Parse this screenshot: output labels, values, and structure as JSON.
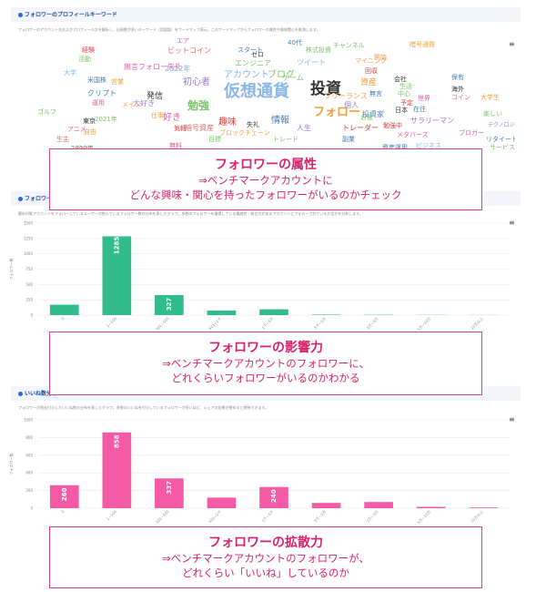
{
  "colors": {
    "accent": "#d6226b",
    "green_bar": "#33bc8b",
    "pink_bar": "#f45aa5",
    "header_bg": "#f3f5fa",
    "header_text": "#1d4e99"
  },
  "panel1": {
    "title": "フォロワーのプロフィールキーワード",
    "desc": "フォロワーのアカウント名およびプロフィール文を解析し、出現数が多いキーワード（用語語）をワードマップ表示。このワードマップからフォロワーの属性や興味関心を推測します。",
    "menu_icon": "hamburger-icon",
    "words": [
      {
        "t": "仮想通貨",
        "c": "#8ab6e6"
      },
      {
        "t": "投資",
        "c": "#333333"
      },
      {
        "t": "フォロー",
        "c": "#f0a040"
      },
      {
        "t": "勉強",
        "c": "#7cc26a"
      },
      {
        "t": "初心者",
        "c": "#9a7ad6"
      },
      {
        "t": "好き",
        "c": "#e060a0"
      },
      {
        "t": "アカウント",
        "c": "#8ab6e6"
      },
      {
        "t": "ブログ",
        "c": "#7cc26a"
      },
      {
        "t": "情報",
        "c": "#4a7ab0"
      },
      {
        "t": "趣味",
        "c": "#d64040"
      },
      {
        "t": "資産",
        "c": "#f0a040"
      },
      {
        "t": "発信",
        "c": "#333333"
      },
      {
        "t": "エンジニア",
        "c": "#7cc26a"
      },
      {
        "t": "暗号資産",
        "c": "#e06a6a"
      },
      {
        "t": "人生",
        "c": "#9a7ad6"
      },
      {
        "t": "トレーダー",
        "c": "#d64040"
      },
      {
        "t": "投資家",
        "c": "#4a7ab0"
      },
      {
        "t": "無言フォロー失礼",
        "c": "#e060a0"
      },
      {
        "t": "ツイート",
        "c": "#8ab6e6"
      },
      {
        "t": "フリーランス",
        "c": "#f0a040"
      },
      {
        "t": "クリプト",
        "c": "#4a7ab0"
      },
      {
        "t": "ゲーム",
        "c": "#7cc26a"
      },
      {
        "t": "2022年",
        "c": "#8ab6e6"
      },
      {
        "t": "ビットコイン",
        "c": "#e06a6a"
      },
      {
        "t": "株式投資",
        "c": "#7cc26a"
      },
      {
        "t": "大好き",
        "c": "#9a7ad6"
      },
      {
        "t": "サラリーマン",
        "c": "#9a7ad6"
      },
      {
        "t": "メタバース",
        "c": "#e060a0"
      },
      {
        "t": "副業",
        "c": "#4a7ab0"
      },
      {
        "t": "勉強中",
        "c": "#d64040"
      },
      {
        "t": "日本",
        "c": "#333333"
      },
      {
        "t": "失礼",
        "c": "#333333"
      },
      {
        "t": "東京",
        "c": "#333333"
      },
      {
        "t": "仕事",
        "c": "#f0a040"
      },
      {
        "t": "米国株",
        "c": "#4a7ab0"
      },
      {
        "t": "ブロックチェーン",
        "c": "#f0a040"
      },
      {
        "t": "お金",
        "c": "#7cc26a"
      },
      {
        "t": "運用",
        "c": "#e060a0"
      },
      {
        "t": "スタート",
        "c": "#4a7ab0"
      },
      {
        "t": "チャンネル",
        "c": "#7cc26a"
      },
      {
        "t": "マイニング",
        "c": "#f0a040"
      },
      {
        "t": "暗号通貨",
        "c": "#4a7ab0"
      },
      {
        "t": "気軽",
        "c": "#d64040"
      },
      {
        "t": "メイン",
        "c": "#f0a040"
      },
      {
        "t": "活動",
        "c": "#7cc26a"
      },
      {
        "t": "経験",
        "c": "#d64040"
      },
      {
        "t": "大学",
        "c": "#8ab6e6"
      },
      {
        "t": "2021年",
        "c": "#7cc26a"
      },
      {
        "t": "アニメ",
        "c": "#e060a0"
      },
      {
        "t": "ゴルフ",
        "c": "#7cc26a"
      },
      {
        "t": "生主",
        "c": "#e06a6a"
      },
      {
        "t": "自由",
        "c": "#f0a040"
      },
      {
        "t": "2020年",
        "c": "#4a7ab0"
      },
      {
        "t": "世界",
        "c": "#e060a0"
      },
      {
        "t": "中心",
        "c": "#7cc26a"
      },
      {
        "t": "会社",
        "c": "#333333"
      },
      {
        "t": "保有",
        "c": "#4a7ab0"
      },
      {
        "t": "海外",
        "c": "#333333"
      },
      {
        "t": "ビジネス",
        "c": "#8ab6e6"
      },
      {
        "t": "ブロガー",
        "c": "#e060a0"
      },
      {
        "t": "資産運用",
        "c": "#4a7ab0"
      },
      {
        "t": "日本株",
        "c": "#4a7ab0"
      },
      {
        "t": "目標",
        "c": "#7cc26a"
      },
      {
        "t": "トレード",
        "c": "#7cc26a"
      },
      {
        "t": "在住",
        "c": "#4a7ab0"
      },
      {
        "t": "予定",
        "c": "#d64040"
      },
      {
        "t": "生活",
        "c": "#7cc26a"
      },
      {
        "t": "開始",
        "c": "#f0a040"
      },
      {
        "t": "無言",
        "c": "#4a7ab0"
      },
      {
        "t": "回収",
        "c": "#d64040"
      },
      {
        "t": "個人",
        "c": "#9a7ad6"
      },
      {
        "t": "無料",
        "c": "#e060a0"
      },
      {
        "t": "コイン",
        "c": "#e060a0"
      },
      {
        "t": "大学生",
        "c": "#f0a040"
      },
      {
        "t": "楽しい",
        "c": "#7cc26a"
      },
      {
        "t": "サービス",
        "c": "#7cc26a"
      },
      {
        "t": "リタイート",
        "c": "#4a7ab0"
      },
      {
        "t": "テクノロジー",
        "c": "#9a7ad6"
      },
      {
        "t": "エア",
        "c": "#e060a0"
      },
      {
        "t": "ゼロ",
        "c": "#333333"
      },
      {
        "t": "40代",
        "c": "#4a7ab0"
      },
      {
        "t": "社会人",
        "c": "#f0a040"
      },
      {
        "t": "暗号通貨",
        "c": "#f0a040"
      },
      {
        "t": "営業",
        "c": "#f0a040"
      },
      {
        "t": "本業",
        "c": "#333333"
      }
    ]
  },
  "panel2": {
    "title": "フォロワーの影響力分布",
    "desc": "解析対象アカウントをフォローしているユーザーが抱えているフォロワー数の分布を表したグラフ。多数のフォロワーを獲得している権威性・発言力があるアカウントにフォローされているか否かを分析します。",
    "menu_icon": "hamburger-icon"
  },
  "panel3": {
    "title": "いいね数分布",
    "desc": "フォロワーが過去付与したいいね数の分布を表したグラフ。多数のいいねを付与しているフォロワーが多いほど、シェアの効果が望めると期待できます。",
    "menu_icon": "hamburger-icon"
  },
  "chart_data": [
    {
      "type": "bar",
      "ylabel": "フォロワー数",
      "ylim": [
        0,
        1500
      ],
      "yticks": [
        0,
        250,
        500,
        750,
        1000,
        1250,
        1500
      ],
      "categories": [
        "0",
        "1~100",
        "101~500",
        "501~1千",
        "1千~5千",
        "5千~1万",
        "1万~5万",
        "5万~10万",
        "10万以上"
      ],
      "values": [
        170,
        1285,
        327,
        75,
        95,
        8,
        5,
        3,
        2
      ],
      "labels": [
        null,
        "1285",
        "327",
        null,
        null,
        null,
        null,
        null,
        null
      ],
      "color": "#33bc8b"
    },
    {
      "type": "bar",
      "ylabel": "フォロワー数",
      "ylim": [
        0,
        1000
      ],
      "yticks": [
        0,
        200,
        400,
        600,
        800,
        1000
      ],
      "categories": [
        "0",
        "1~100",
        "101~500",
        "501~1千",
        "1千~5千",
        "5千~1万",
        "1万~5万",
        "5万~10万",
        "10万以上"
      ],
      "values": [
        260,
        858,
        337,
        120,
        240,
        60,
        70,
        15,
        8
      ],
      "labels": [
        "260",
        "858",
        "337",
        null,
        "240",
        null,
        null,
        null,
        null
      ],
      "color": "#f45aa5"
    }
  ],
  "callouts": [
    {
      "title": "フォロワーの属性",
      "line1": "⇒ベンチマークアカウントに",
      "line2": "どんな興味・関心を持ったフォロワーがいるのかチェック"
    },
    {
      "title": "フォロワーの影響力",
      "line1": "⇒ベンチマークアカウントのフォロワーに、",
      "line2": "どれくらいフォロワーがいるのかわかる"
    },
    {
      "title": "フォロワーの拡散力",
      "line1": "⇒ベンチマークアカウントのフォロワーが、",
      "line2": "どれくらい「いいね」しているのか"
    }
  ]
}
